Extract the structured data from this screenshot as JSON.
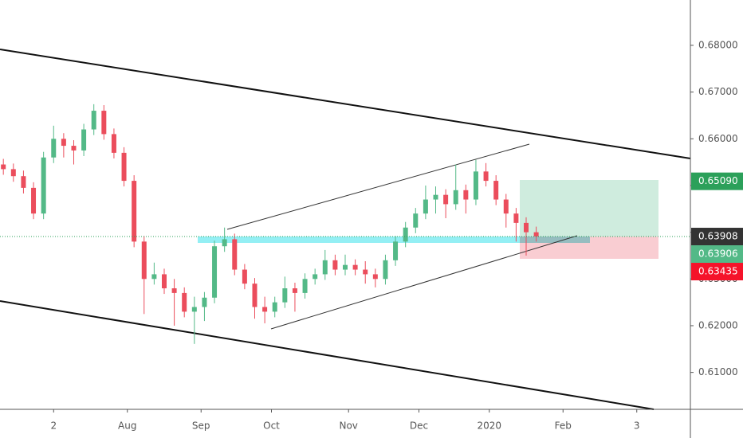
{
  "chart_data": {
    "type": "candlestick",
    "x": [
      1,
      4,
      7,
      10,
      13,
      16,
      19,
      22,
      25,
      28,
      31,
      34,
      37,
      40,
      43,
      46,
      49,
      52,
      55,
      58,
      61,
      64,
      67,
      70,
      73,
      76,
      79,
      82,
      85,
      88,
      91,
      94,
      97,
      100,
      103,
      106,
      109,
      112,
      115,
      118,
      121,
      124,
      127,
      130,
      133,
      136,
      139,
      142,
      145,
      148,
      151,
      154,
      157,
      160
    ],
    "open": [
      0.6545,
      0.6535,
      0.652,
      0.6495,
      0.644,
      0.656,
      0.66,
      0.6585,
      0.6575,
      0.662,
      0.666,
      0.661,
      0.657,
      0.651,
      0.638,
      0.63,
      0.631,
      0.628,
      0.627,
      0.623,
      0.624,
      0.626,
      0.637,
      0.6385,
      0.632,
      0.629,
      0.624,
      0.623,
      0.625,
      0.628,
      0.627,
      0.63,
      0.631,
      0.634,
      0.632,
      0.633,
      0.632,
      0.631,
      0.63,
      0.634,
      0.638,
      0.641,
      0.644,
      0.647,
      0.648,
      0.646,
      0.649,
      0.647,
      0.653,
      0.651,
      0.647,
      0.644,
      0.642,
      0.64
    ],
    "high": [
      0.6557,
      0.6547,
      0.6532,
      0.6507,
      0.6572,
      0.6628,
      0.6612,
      0.6597,
      0.6632,
      0.6674,
      0.6672,
      0.6622,
      0.6582,
      0.6522,
      0.6392,
      0.6335,
      0.6322,
      0.63,
      0.6282,
      0.6262,
      0.6272,
      0.6382,
      0.641,
      0.6397,
      0.6332,
      0.6302,
      0.6262,
      0.6262,
      0.6305,
      0.6292,
      0.6312,
      0.6322,
      0.6362,
      0.6352,
      0.6352,
      0.6342,
      0.6338,
      0.6322,
      0.6352,
      0.6392,
      0.6422,
      0.6452,
      0.65,
      0.6498,
      0.6492,
      0.6545,
      0.6502,
      0.6555,
      0.6548,
      0.6522,
      0.6482,
      0.6452,
      0.6432,
      0.6412
    ],
    "low": [
      0.6523,
      0.6508,
      0.6483,
      0.6428,
      0.6428,
      0.6548,
      0.656,
      0.6545,
      0.6563,
      0.6608,
      0.6598,
      0.6558,
      0.6498,
      0.6368,
      0.6225,
      0.6288,
      0.6268,
      0.62,
      0.6218,
      0.6161,
      0.621,
      0.6248,
      0.6358,
      0.6308,
      0.6278,
      0.6215,
      0.6205,
      0.6218,
      0.6238,
      0.623,
      0.6258,
      0.6288,
      0.6298,
      0.6308,
      0.6308,
      0.6308,
      0.629,
      0.6282,
      0.6288,
      0.6328,
      0.6368,
      0.6398,
      0.6428,
      0.644,
      0.643,
      0.6448,
      0.644,
      0.6458,
      0.6498,
      0.6458,
      0.641,
      0.638,
      0.635,
      0.638
    ],
    "close": [
      0.6535,
      0.652,
      0.6495,
      0.644,
      0.656,
      0.66,
      0.6585,
      0.6575,
      0.662,
      0.666,
      0.661,
      0.657,
      0.651,
      0.638,
      0.63,
      0.631,
      0.628,
      0.627,
      0.623,
      0.624,
      0.626,
      0.637,
      0.6385,
      0.632,
      0.629,
      0.624,
      0.623,
      0.625,
      0.628,
      0.627,
      0.63,
      0.631,
      0.634,
      0.632,
      0.633,
      0.632,
      0.631,
      0.63,
      0.634,
      0.638,
      0.641,
      0.644,
      0.647,
      0.648,
      0.646,
      0.649,
      0.647,
      0.653,
      0.651,
      0.647,
      0.644,
      0.642,
      0.64,
      0.6391
    ],
    "up_color": "#53b987",
    "down_color": "#eb4d5c",
    "xlim": [
      0,
      206
    ],
    "xticks": [
      {
        "value": 16,
        "label": "2"
      },
      {
        "value": 38,
        "label": "Aug"
      },
      {
        "value": 60,
        "label": "Sep"
      },
      {
        "value": 81,
        "label": "Oct"
      },
      {
        "value": 104,
        "label": "Nov"
      },
      {
        "value": 125,
        "label": "Dec"
      },
      {
        "value": 146,
        "label": "2020"
      },
      {
        "value": 168,
        "label": "Feb"
      },
      {
        "value": 190,
        "label": "3"
      }
    ],
    "ylim": [
      0.6021,
      0.6897
    ],
    "yticks": [
      {
        "value": 0.61,
        "label": "0.61000"
      },
      {
        "value": 0.62,
        "label": "0.62000"
      },
      {
        "value": 0.63,
        "label": "0.63000"
      },
      {
        "value": 0.64,
        "label": "0.64000"
      },
      {
        "value": 0.65,
        "label": "0.65000"
      },
      {
        "value": 0.66,
        "label": "0.66000"
      },
      {
        "value": 0.67,
        "label": "0.67000"
      },
      {
        "value": 0.68,
        "label": "0.68000"
      }
    ],
    "price_labels": [
      {
        "value": 0.6509,
        "label": "0.65090",
        "color": "#2ca05a"
      },
      {
        "value": 0.63908,
        "label": "0.63908",
        "color": "#333333"
      },
      {
        "value": 0.63906,
        "label": "0.63906",
        "color": "#53b987"
      },
      {
        "value": 0.63435,
        "label": "0.63435",
        "color": "#f5132a"
      }
    ]
  }
}
